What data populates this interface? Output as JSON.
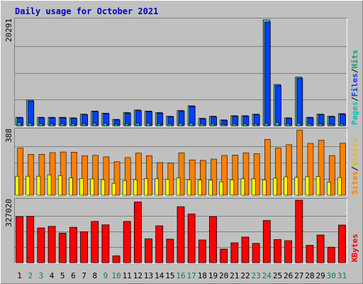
{
  "chart_data": {
    "type": "bar",
    "title": "Daily usage for October 2021",
    "days": [
      "1",
      "2",
      "3",
      "4",
      "5",
      "6",
      "7",
      "8",
      "9",
      "10",
      "11",
      "12",
      "13",
      "14",
      "15",
      "16",
      "17",
      "18",
      "19",
      "20",
      "21",
      "22",
      "23",
      "24",
      "25",
      "26",
      "27",
      "28",
      "29",
      "30",
      "31"
    ],
    "weekend_days": [
      "2",
      "3",
      "9",
      "10",
      "16",
      "17",
      "23",
      "24",
      "30",
      "31"
    ],
    "panels": [
      {
        "max_label": "20291",
        "max": 20291,
        "legend": [
          "Pages",
          "/",
          "Files",
          "/",
          "Hits"
        ],
        "series": [
          {
            "name": "Hits",
            "color": "#66cccc",
            "values": [
              1600,
              4900,
              1600,
              1600,
              1600,
              1500,
              2200,
              2800,
              2400,
              1200,
              2500,
              3000,
              2800,
              2500,
              1800,
              2900,
              3800,
              1400,
              1800,
              1100,
              1900,
              1900,
              2200,
              20291,
              7900,
              1500,
              9300,
              1600,
              2200,
              1800,
              2300
            ]
          },
          {
            "name": "Files",
            "color": "#0040ff",
            "values": [
              1500,
              4700,
              1500,
              1500,
              1500,
              1400,
              2100,
              2700,
              2300,
              1100,
              2400,
              2900,
              2700,
              2400,
              1700,
              2800,
              3700,
              1300,
              1700,
              1000,
              1800,
              1800,
              2100,
              19900,
              7700,
              1400,
              9100,
              1500,
              2100,
              1700,
              2200
            ]
          },
          {
            "name": "Pages",
            "color": "#00c0c0",
            "values": [
              600,
              500,
              400,
              400,
              400,
              400,
              400,
              500,
              500,
              300,
              400,
              500,
              500,
              400,
              400,
              500,
              500,
              400,
              400,
              300,
              400,
              400,
              400,
              500,
              600,
              400,
              500,
              400,
              400,
              300,
              400
            ]
          }
        ]
      },
      {
        "max_label": "388",
        "max": 388,
        "legend": [
          "Sites",
          "/",
          "Visits"
        ],
        "series": [
          {
            "name": "Visits",
            "color": "#ff8000",
            "values": [
              280,
              243,
              243,
              253,
              257,
              256,
              235,
              237,
              228,
              199,
              224,
              250,
              235,
              194,
              191,
              252,
              210,
              207,
              215,
              236,
              239,
              252,
              247,
              331,
              280,
              300,
              388,
              308,
              326,
              236,
              309
            ]
          },
          {
            "name": "Sites",
            "color": "#ffff00",
            "values": [
              113,
              113,
              113,
              121,
              117,
              103,
              100,
              97,
              92,
              71,
              87,
              92,
              99,
              98,
              95,
              103,
              92,
              90,
              90,
              80,
              92,
              98,
              98,
              91,
              102,
              109,
              106,
              110,
              111,
              78,
              105
            ]
          }
        ]
      },
      {
        "max_label": "327020",
        "max": 327020,
        "legend": [
          "KBytes"
        ],
        "series": [
          {
            "name": "KBytes",
            "color": "#ff0000",
            "values": [
              241000,
              242000,
              182000,
              190000,
              155000,
              185000,
              162000,
              216000,
              198000,
              36000,
              216000,
              318000,
              125000,
              193000,
              123000,
              293000,
              255000,
              119000,
              241000,
              71000,
              104000,
              134000,
              101000,
              221000,
              121000,
              115000,
              327020,
              91000,
              145000,
              81000,
              197000
            ]
          }
        ]
      }
    ]
  }
}
